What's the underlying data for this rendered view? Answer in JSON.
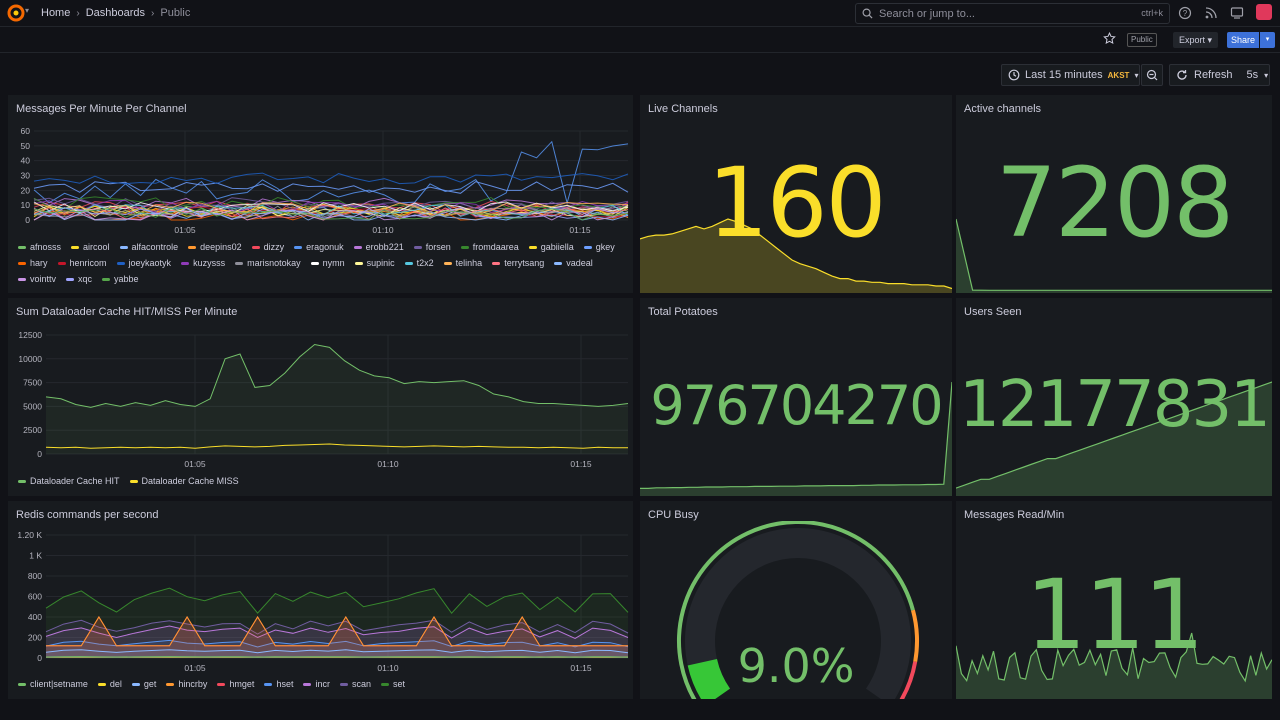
{
  "breadcrumb": {
    "home": "Home",
    "dashboards": "Dashboards",
    "current": "Public"
  },
  "search": {
    "placeholder": "Search or jump to...",
    "shortcut": "ctrl+k"
  },
  "toolbar": {
    "public_badge": "Public",
    "export_label": "Export",
    "share_label": "Share"
  },
  "timepicker": {
    "range": "Last 15 minutes",
    "timezone": "AKST",
    "refresh_label": "Refresh",
    "interval": "5s"
  },
  "colors": {
    "green": "#73bf69",
    "yellow": "#fade2a",
    "orange": "#ff9830",
    "red": "#f2495c",
    "blue": "#5794f2",
    "accent": "#3d71d9"
  },
  "panels": {
    "messages_per_minute": {
      "title": "Messages Per Minute Per Channel",
      "yticks": [
        "60",
        "50",
        "40",
        "30",
        "20",
        "10",
        "0"
      ],
      "xticks": [
        "01:05",
        "01:10",
        "01:15"
      ],
      "legend": [
        {
          "name": "afnosss",
          "color": "#73bf69"
        },
        {
          "name": "aircool",
          "color": "#fade2a"
        },
        {
          "name": "alfacontrole",
          "color": "#8ab8ff"
        },
        {
          "name": "deepins02",
          "color": "#ff9830"
        },
        {
          "name": "dizzy",
          "color": "#f2495c"
        },
        {
          "name": "eragonuk",
          "color": "#5794f2"
        },
        {
          "name": "erobb221",
          "color": "#b877d9"
        },
        {
          "name": "forsen",
          "color": "#705da0"
        },
        {
          "name": "fromdaarea",
          "color": "#37872d"
        },
        {
          "name": "gabiiella",
          "color": "#fade2a"
        },
        {
          "name": "gkey",
          "color": "#6e9fff"
        },
        {
          "name": "hary",
          "color": "#fa6400"
        },
        {
          "name": "henricom",
          "color": "#c4162a"
        },
        {
          "name": "joeykaotyk",
          "color": "#1f60c4"
        },
        {
          "name": "kuzysss",
          "color": "#8f3bb8"
        },
        {
          "name": "marisnotokay",
          "color": "#8f8f9a"
        },
        {
          "name": "nymn",
          "color": "#ffffff"
        },
        {
          "name": "supinic",
          "color": "#fff899"
        },
        {
          "name": "t2x2",
          "color": "#56c8e0"
        },
        {
          "name": "telinha",
          "color": "#ffb357"
        },
        {
          "name": "terrytsang",
          "color": "#ff7383"
        },
        {
          "name": "vadeal",
          "color": "#8ab8ff"
        },
        {
          "name": "vointtv",
          "color": "#ca95e5"
        },
        {
          "name": "xqc",
          "color": "#a0a4ff"
        },
        {
          "name": "yabbe",
          "color": "#56a64b"
        }
      ]
    },
    "dataloader": {
      "title": "Sum Dataloader Cache HIT/MISS Per Minute",
      "yticks": [
        "12500",
        "10000",
        "7500",
        "5000",
        "2500",
        "0"
      ],
      "xticks": [
        "01:05",
        "01:10",
        "01:15"
      ],
      "legend": [
        {
          "name": "Dataloader Cache HIT",
          "color": "#73bf69"
        },
        {
          "name": "Dataloader Cache MISS",
          "color": "#fade2a"
        }
      ]
    },
    "redis": {
      "title": "Redis commands per second",
      "yticks": [
        "1.20 K",
        "1 K",
        "800",
        "600",
        "400",
        "200",
        "0"
      ],
      "xticks": [
        "01:05",
        "01:10",
        "01:15"
      ],
      "legend": [
        {
          "name": "client|setname",
          "color": "#73bf69"
        },
        {
          "name": "del",
          "color": "#fade2a"
        },
        {
          "name": "get",
          "color": "#8ab8ff"
        },
        {
          "name": "hincrby",
          "color": "#ff9830"
        },
        {
          "name": "hmget",
          "color": "#f2495c"
        },
        {
          "name": "hset",
          "color": "#5794f2"
        },
        {
          "name": "incr",
          "color": "#b877d9"
        },
        {
          "name": "scan",
          "color": "#705da0"
        },
        {
          "name": "set",
          "color": "#37872d"
        }
      ]
    },
    "live_channels": {
      "title": "Live Channels",
      "value": "160"
    },
    "active_channels": {
      "title": "Active channels",
      "value": "7208"
    },
    "total_potatoes": {
      "title": "Total Potatoes",
      "value": "976704270"
    },
    "users_seen": {
      "title": "Users Seen",
      "value": "12177831"
    },
    "cpu_busy": {
      "title": "CPU Busy",
      "value": "9.0%",
      "percent": 9.0
    },
    "messages_read": {
      "title": "Messages Read/Min",
      "value": "111"
    }
  }
}
